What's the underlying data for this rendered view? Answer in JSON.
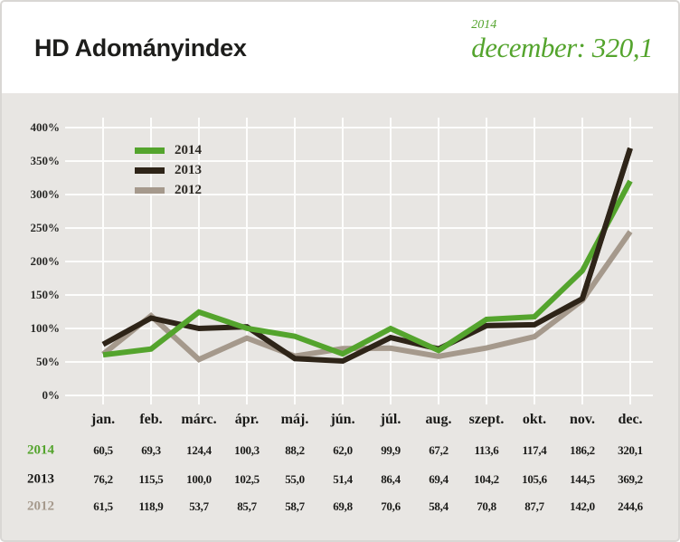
{
  "header": {
    "title": "HD Adományindex",
    "badge_year": "2014",
    "badge_value": "december: 320,1"
  },
  "colors": {
    "accent_green": "#54a42d",
    "dark_line": "#2e2418",
    "taupe_line": "#a5998c",
    "background": "#e8e6e3",
    "gridline": "#fdfdfc"
  },
  "chart_data": {
    "type": "line",
    "categories": [
      "jan.",
      "feb.",
      "márc.",
      "ápr.",
      "máj.",
      "jún.",
      "júl.",
      "aug.",
      "szept.",
      "okt.",
      "nov.",
      "dec."
    ],
    "y_ticks": [
      "400%",
      "350%",
      "300%",
      "250%",
      "200%",
      "150%",
      "100%",
      "50%",
      "0%"
    ],
    "ylim": [
      0,
      400
    ],
    "grid": true,
    "legend_position": "top-left-inside",
    "series": [
      {
        "name": "2014",
        "color": "#54a42d",
        "values": [
          60.5,
          69.3,
          124.4,
          100.3,
          88.2,
          62.0,
          99.9,
          67.2,
          113.6,
          117.4,
          186.2,
          320.1
        ]
      },
      {
        "name": "2013",
        "color": "#2e2418",
        "values": [
          76.2,
          115.5,
          100.0,
          102.5,
          55.0,
          51.4,
          86.4,
          69.4,
          104.2,
          105.6,
          144.5,
          369.2
        ]
      },
      {
        "name": "2012",
        "color": "#a5998c",
        "values": [
          61.5,
          118.9,
          53.7,
          85.7,
          58.7,
          69.8,
          70.6,
          58.4,
          70.8,
          87.7,
          142.0,
          244.6
        ]
      }
    ]
  },
  "table": {
    "rows": [
      {
        "label": "2014",
        "color": "#54a42d",
        "values": [
          "60,5",
          "69,3",
          "124,4",
          "100,3",
          "88,2",
          "62,0",
          "99,9",
          "67,2",
          "113,6",
          "117,4",
          "186,2",
          "320,1"
        ]
      },
      {
        "label": "2013",
        "color": "#1b1b19",
        "values": [
          "76,2",
          "115,5",
          "100,0",
          "102,5",
          "55,0",
          "51,4",
          "86,4",
          "69,4",
          "104,2",
          "105,6",
          "144,5",
          "369,2"
        ]
      },
      {
        "label": "2012",
        "color": "#a5998c",
        "values": [
          "61,5",
          "118,9",
          "53,7",
          "85,7",
          "58,7",
          "69,8",
          "70,6",
          "58,4",
          "70,8",
          "87,7",
          "142,0",
          "244,6"
        ]
      }
    ]
  }
}
